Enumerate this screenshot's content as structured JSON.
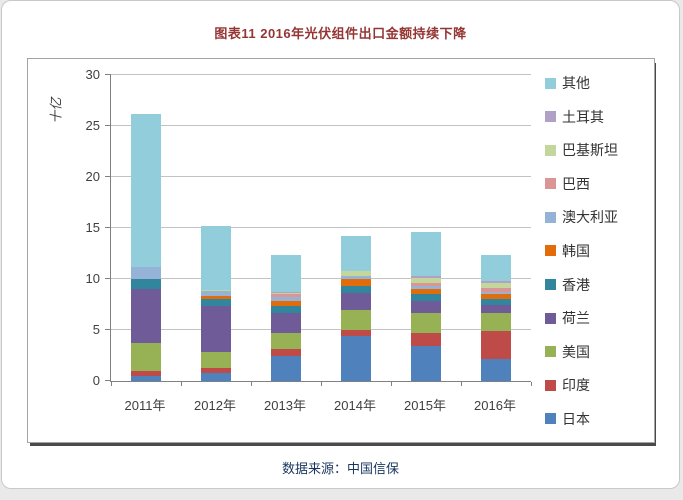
{
  "page": {
    "title": "图表11  2016年光伏组件出口金额持续下降",
    "source": "数据来源：中国信保"
  },
  "colors": {
    "title_text": "#943634",
    "source_text": "#17365d",
    "gridline": "#c3c3c3",
    "axis_line": "#808080"
  },
  "chart_data": {
    "type": "bar",
    "stacked": true,
    "title": "图表11  2016年光伏组件出口金额持续下降",
    "ylabel": "十亿",
    "xlabel": "",
    "ylim": [
      0,
      30
    ],
    "yticks": [
      0,
      5,
      10,
      15,
      20,
      25,
      30
    ],
    "grid": true,
    "legend_position": "right",
    "legend_order_top_to_bottom": [
      "其他",
      "土耳其",
      "巴基斯坦",
      "巴西",
      "澳大利亚",
      "韩国",
      "香港",
      "荷兰",
      "美国",
      "印度",
      "日本"
    ],
    "categories": [
      "2011年",
      "2012年",
      "2013年",
      "2014年",
      "2015年",
      "2016年"
    ],
    "series": [
      {
        "name": "日本",
        "color": "#4f81bd",
        "values": [
          0.45,
          0.8,
          2.45,
          4.4,
          3.45,
          2.15
        ]
      },
      {
        "name": "印度",
        "color": "#bf4b48",
        "values": [
          0.5,
          0.45,
          0.65,
          0.65,
          1.3,
          2.75
        ]
      },
      {
        "name": "美国",
        "color": "#97b254",
        "values": [
          2.8,
          1.55,
          1.6,
          1.95,
          1.95,
          1.8
        ]
      },
      {
        "name": "荷兰",
        "color": "#6e5b97",
        "values": [
          5.3,
          4.55,
          2.0,
          1.6,
          1.15,
          0.8
        ]
      },
      {
        "name": "香港",
        "color": "#31859c",
        "values": [
          1.0,
          0.65,
          0.7,
          0.7,
          0.65,
          0.55
        ]
      },
      {
        "name": "韩国",
        "color": "#e36c0a",
        "values": [
          0.0,
          0.35,
          0.4,
          0.7,
          0.5,
          0.5
        ]
      },
      {
        "name": "澳大利亚",
        "color": "#95b3d7",
        "values": [
          1.1,
          0.5,
          0.4,
          0.25,
          0.35,
          0.2
        ]
      },
      {
        "name": "巴西",
        "color": "#d99694",
        "values": [
          0.0,
          0.05,
          0.4,
          0.0,
          0.3,
          0.35
        ]
      },
      {
        "name": "巴基斯坦",
        "color": "#c3d69b",
        "values": [
          0.0,
          0.05,
          0.05,
          0.55,
          0.45,
          0.5
        ]
      },
      {
        "name": "土耳其",
        "color": "#b2a1c7",
        "values": [
          0.0,
          0.0,
          0.05,
          0.0,
          0.2,
          0.2
        ]
      },
      {
        "name": "其他",
        "color": "#92cddc",
        "values": [
          15.0,
          6.25,
          3.7,
          3.4,
          4.3,
          2.6
        ]
      }
    ],
    "totals": [
      26.15,
      15.2,
      12.4,
      14.2,
      14.6,
      12.4
    ]
  }
}
